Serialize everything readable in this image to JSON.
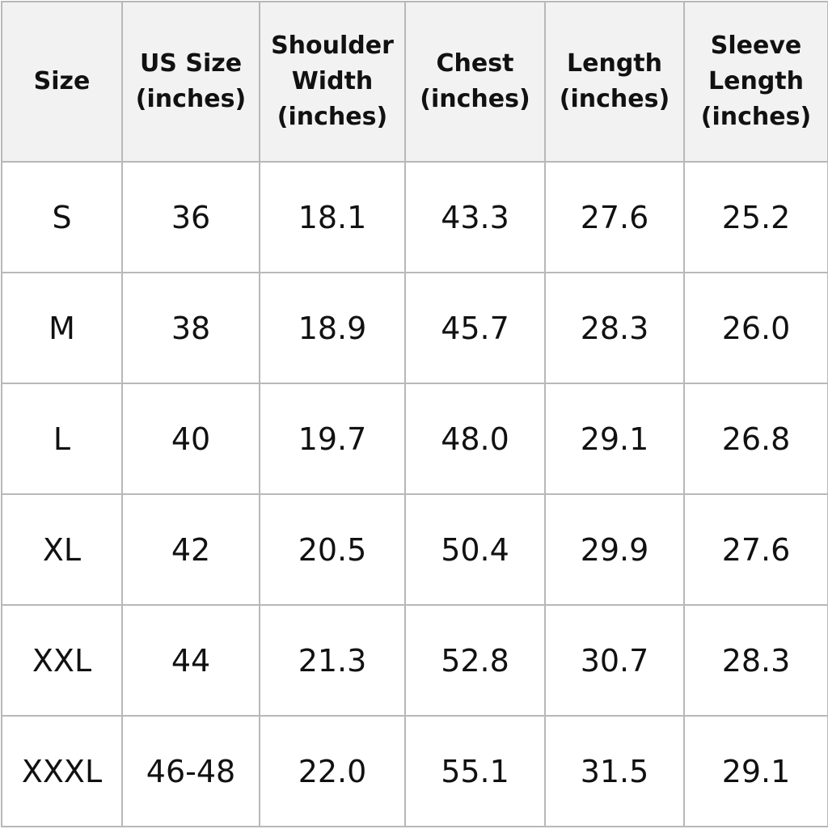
{
  "table": {
    "headers": [
      "Size",
      "US Size (inches)",
      "Shoulder Width (inches)",
      "Chest (inches)",
      "Length (inches)",
      "Sleeve Length (inches)"
    ],
    "rows": [
      [
        "S",
        "36",
        "18.1",
        "43.3",
        "27.6",
        "25.2"
      ],
      [
        "M",
        "38",
        "18.9",
        "45.7",
        "28.3",
        "26.0"
      ],
      [
        "L",
        "40",
        "19.7",
        "48.0",
        "29.1",
        "26.8"
      ],
      [
        "XL",
        "42",
        "20.5",
        "50.4",
        "29.9",
        "27.6"
      ],
      [
        "XXL",
        "44",
        "21.3",
        "52.8",
        "30.7",
        "28.3"
      ],
      [
        "XXXL",
        "46-48",
        "22.0",
        "55.1",
        "31.5",
        "29.1"
      ]
    ]
  }
}
